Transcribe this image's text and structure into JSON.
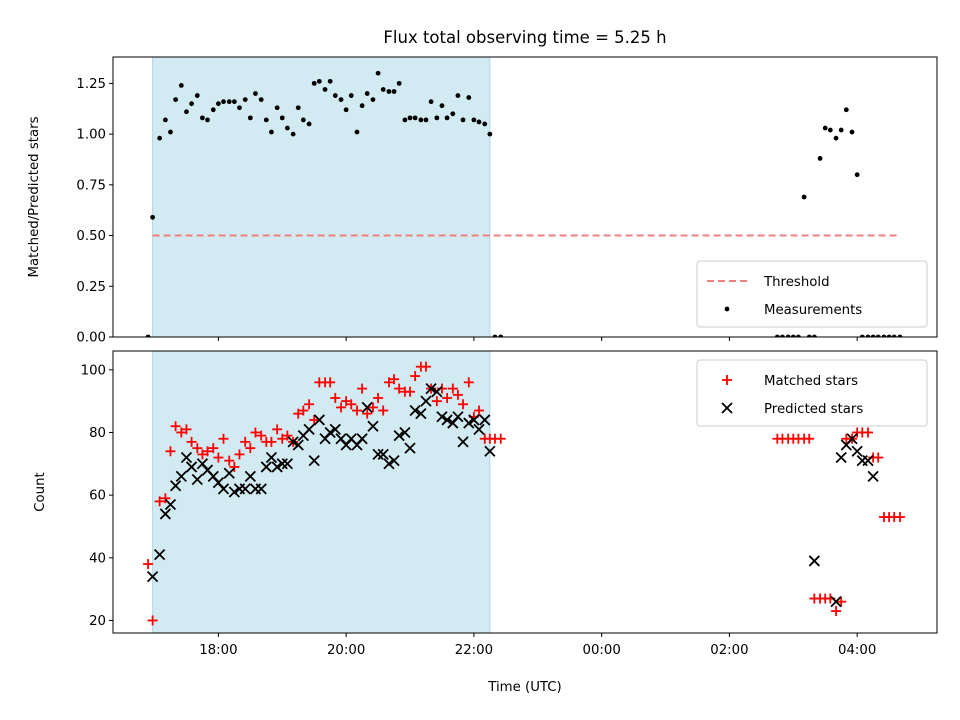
{
  "chart_data": [
    {
      "type": "scatter",
      "title": "Flux total observing time = 5.25 h",
      "ylabel": "Matched/Predicted stars",
      "xlabel": "",
      "ylim": [
        0,
        1.38
      ],
      "xlim": [
        16.35,
        29.25
      ],
      "yticks": [
        0,
        0.25,
        0.5,
        0.75,
        1.0,
        1.25
      ],
      "ytick_labels": [
        "0.00",
        "0.25",
        "0.50",
        "0.75",
        "1.00",
        "1.25"
      ],
      "xticks": [
        18,
        20,
        22,
        24,
        26,
        28
      ],
      "shaded_span": {
        "x0": 16.97,
        "x1": 22.25,
        "color": "#add8e6"
      },
      "grid": false,
      "legend_position": "lower-right",
      "threshold": {
        "name": "Threshold",
        "y": 0.5,
        "x0": 16.97,
        "x1": 28.65,
        "color": "#f08080"
      },
      "measurements": {
        "name": "Measurements",
        "color": "#000000",
        "x": [
          16.9,
          16.97,
          17.08,
          17.17,
          17.25,
          17.33,
          17.42,
          17.5,
          17.58,
          17.67,
          17.75,
          17.83,
          17.92,
          18.0,
          18.08,
          18.17,
          18.25,
          18.33,
          18.42,
          18.5,
          18.58,
          18.67,
          18.75,
          18.83,
          18.92,
          19.0,
          19.08,
          19.17,
          19.25,
          19.33,
          19.42,
          19.5,
          19.58,
          19.67,
          19.75,
          19.83,
          19.92,
          20.0,
          20.08,
          20.17,
          20.25,
          20.33,
          20.42,
          20.5,
          20.58,
          20.67,
          20.75,
          20.83,
          20.92,
          21.0,
          21.08,
          21.17,
          21.25,
          21.33,
          21.42,
          21.5,
          21.58,
          21.67,
          21.75,
          21.83,
          21.92,
          22.0,
          22.08,
          22.17,
          22.25,
          22.33,
          22.42,
          26.75,
          26.83,
          26.92,
          27.0,
          27.08,
          27.17,
          27.25,
          27.33,
          27.42,
          27.5,
          27.58,
          27.67,
          27.75,
          27.83,
          27.92,
          28.0,
          28.08,
          28.17,
          28.25,
          28.33,
          28.42,
          28.5,
          28.58,
          28.67
        ],
        "y": [
          0.0,
          0.59,
          0.98,
          1.07,
          1.01,
          1.17,
          1.24,
          1.11,
          1.15,
          1.19,
          1.08,
          1.07,
          1.12,
          1.15,
          1.16,
          1.16,
          1.16,
          1.13,
          1.17,
          1.08,
          1.2,
          1.17,
          1.07,
          1.01,
          1.13,
          1.08,
          1.03,
          1.0,
          1.13,
          1.07,
          1.05,
          1.25,
          1.26,
          1.22,
          1.26,
          1.19,
          1.17,
          1.12,
          1.19,
          1.01,
          1.14,
          1.2,
          1.17,
          1.3,
          1.22,
          1.21,
          1.21,
          1.25,
          1.07,
          1.08,
          1.08,
          1.07,
          1.07,
          1.16,
          1.08,
          1.14,
          1.08,
          1.1,
          1.19,
          1.07,
          1.18,
          1.07,
          1.06,
          1.05,
          1.0,
          0.0,
          0.0,
          0.0,
          0.0,
          0.0,
          0.0,
          0.0,
          0.69,
          0.0,
          0.0,
          0.88,
          1.03,
          1.02,
          0.98,
          1.02,
          1.12,
          1.01,
          0.8,
          0.0,
          0.0,
          0.0,
          0.0,
          0.0,
          0.0,
          0.0,
          0.0
        ]
      }
    },
    {
      "type": "scatter",
      "title": "",
      "ylabel": "Count",
      "xlabel": "Time (UTC)",
      "ylim": [
        16,
        106
      ],
      "xlim": [
        16.35,
        29.25
      ],
      "yticks": [
        20,
        40,
        60,
        80,
        100
      ],
      "ytick_labels": [
        "20",
        "40",
        "60",
        "80",
        "100"
      ],
      "xticks": [
        18,
        20,
        22,
        24,
        26,
        28
      ],
      "xtick_labels": [
        "18:00",
        "20:00",
        "22:00",
        "00:00",
        "02:00",
        "04:00"
      ],
      "shaded_span": {
        "x0": 16.97,
        "x1": 22.25,
        "color": "#add8e6"
      },
      "grid": false,
      "legend_position": "upper-right",
      "series": [
        {
          "name": "Matched stars",
          "marker": "plus",
          "color": "#ff0000",
          "x": [
            16.9,
            16.97,
            17.08,
            17.17,
            17.25,
            17.33,
            17.42,
            17.5,
            17.58,
            17.67,
            17.75,
            17.83,
            17.92,
            18.0,
            18.08,
            18.17,
            18.25,
            18.33,
            18.42,
            18.5,
            18.58,
            18.67,
            18.75,
            18.83,
            18.92,
            19.0,
            19.08,
            19.17,
            19.25,
            19.33,
            19.42,
            19.5,
            19.58,
            19.67,
            19.75,
            19.83,
            19.92,
            20.0,
            20.08,
            20.17,
            20.25,
            20.33,
            20.42,
            20.5,
            20.58,
            20.67,
            20.75,
            20.83,
            20.92,
            21.0,
            21.08,
            21.17,
            21.25,
            21.33,
            21.42,
            21.5,
            21.58,
            21.67,
            21.75,
            21.83,
            21.92,
            22.0,
            22.08,
            22.17,
            22.25,
            22.33,
            22.42,
            26.75,
            26.83,
            26.92,
            27.0,
            27.08,
            27.17,
            27.25,
            27.33,
            27.42,
            27.5,
            27.58,
            27.67,
            27.75,
            27.83,
            27.92,
            28.0,
            28.08,
            28.17,
            28.25,
            28.33,
            28.42,
            28.5,
            28.58,
            28.67
          ],
          "y": [
            38,
            20,
            58,
            59,
            74,
            82,
            80,
            81,
            77,
            75,
            73,
            74,
            75,
            72,
            78,
            71,
            69,
            73,
            77,
            75,
            80,
            79,
            77,
            77,
            81,
            78,
            79,
            77,
            86,
            87,
            89,
            84,
            96,
            96,
            96,
            91,
            88,
            90,
            89,
            87,
            94,
            86,
            88,
            91,
            87,
            96,
            97,
            94,
            93,
            93,
            98,
            101,
            101,
            94,
            90,
            94,
            91,
            94,
            92,
            89,
            96,
            85,
            87,
            78,
            78,
            78,
            78,
            78,
            78,
            78,
            78,
            78,
            78,
            78,
            27,
            27,
            27,
            27,
            23,
            26,
            78,
            78,
            80,
            80,
            80,
            72,
            72,
            53,
            53,
            53,
            53
          ]
        },
        {
          "name": "Predicted stars",
          "marker": "x",
          "color": "#000000",
          "x": [
            16.97,
            17.08,
            17.17,
            17.25,
            17.33,
            17.42,
            17.5,
            17.58,
            17.67,
            17.75,
            17.83,
            17.92,
            18.0,
            18.08,
            18.17,
            18.25,
            18.33,
            18.42,
            18.5,
            18.58,
            18.67,
            18.75,
            18.83,
            18.92,
            19.0,
            19.08,
            19.17,
            19.25,
            19.33,
            19.42,
            19.5,
            19.58,
            19.67,
            19.75,
            19.83,
            19.92,
            20.0,
            20.08,
            20.17,
            20.25,
            20.33,
            20.42,
            20.5,
            20.58,
            20.67,
            20.75,
            20.83,
            20.92,
            21.0,
            21.08,
            21.17,
            21.25,
            21.33,
            21.42,
            21.5,
            21.58,
            21.67,
            21.75,
            21.83,
            21.92,
            22.0,
            22.08,
            22.17,
            22.25,
            27.33,
            27.67,
            27.75,
            27.83,
            27.92,
            28.0,
            28.08,
            28.17,
            28.25
          ],
          "y": [
            34,
            41,
            54,
            57,
            63,
            66,
            72,
            69,
            65,
            70,
            68,
            66,
            64,
            62,
            67,
            61,
            62,
            62,
            66,
            62,
            62,
            69,
            72,
            69,
            70,
            70,
            77,
            76,
            79,
            81,
            71,
            84,
            78,
            80,
            81,
            78,
            76,
            78,
            76,
            78,
            88,
            82,
            73,
            73,
            70,
            71,
            79,
            80,
            75,
            87,
            86,
            90,
            94,
            93,
            85,
            84,
            83,
            85,
            77,
            83,
            84,
            81,
            84,
            74,
            39,
            26,
            72,
            76,
            78,
            74,
            71,
            71,
            66
          ]
        }
      ]
    }
  ]
}
